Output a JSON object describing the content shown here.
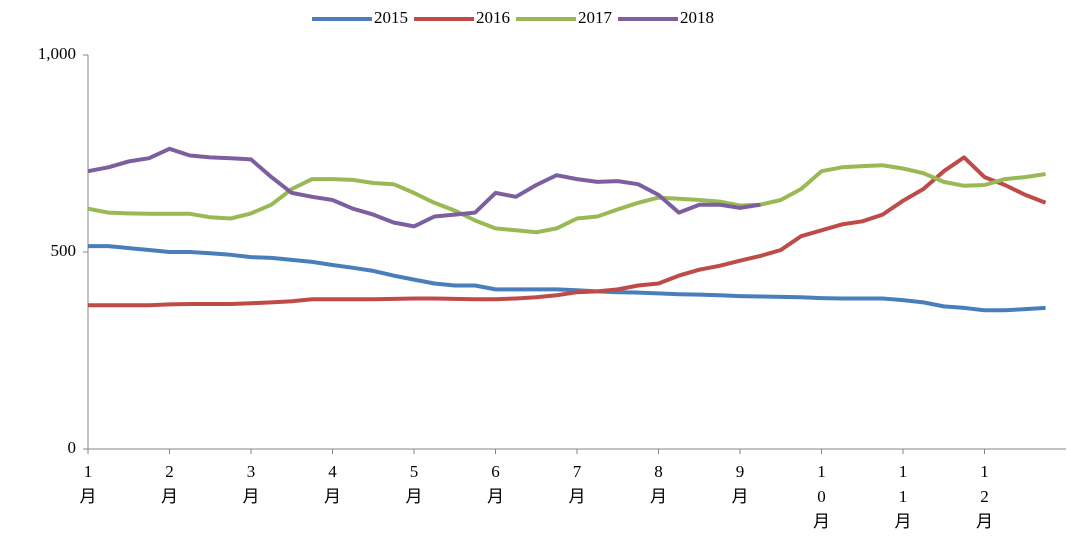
{
  "chart_data": {
    "type": "line",
    "categories": [
      "1月",
      null,
      null,
      null,
      "2月",
      null,
      null,
      null,
      "3月",
      null,
      null,
      null,
      "4月",
      null,
      null,
      null,
      "5月",
      null,
      null,
      null,
      "6月",
      null,
      null,
      null,
      "7月",
      null,
      null,
      null,
      "8月",
      null,
      null,
      null,
      "9月",
      null,
      null,
      null,
      "10月",
      null,
      null,
      null,
      "11月",
      null,
      null,
      null,
      "12月",
      null,
      null,
      null
    ],
    "series": [
      {
        "name": "2015",
        "color": "#4a7ebb",
        "values": [
          515,
          515,
          510,
          505,
          500,
          500,
          497,
          493,
          487,
          485,
          480,
          475,
          467,
          460,
          452,
          440,
          430,
          420,
          415,
          415,
          405,
          405,
          405,
          405,
          403,
          400,
          398,
          397,
          395,
          393,
          392,
          390,
          388,
          387,
          386,
          385,
          383,
          382,
          382,
          382,
          378,
          372,
          362,
          358,
          352,
          352,
          355,
          358
        ]
      },
      {
        "name": "2016",
        "color": "#be4b48",
        "values": [
          365,
          365,
          365,
          365,
          367,
          368,
          368,
          368,
          370,
          372,
          375,
          380,
          380,
          380,
          380,
          381,
          382,
          382,
          381,
          380,
          380,
          382,
          385,
          390,
          398,
          400,
          405,
          415,
          420,
          440,
          455,
          465,
          478,
          490,
          505,
          540,
          555,
          570,
          578,
          595,
          630,
          660,
          705,
          740,
          690,
          670,
          645,
          625
        ]
      },
      {
        "name": "2017",
        "color": "#98b954",
        "values": [
          610,
          600,
          598,
          597,
          597,
          597,
          588,
          585,
          598,
          620,
          660,
          685,
          685,
          683,
          675,
          672,
          650,
          625,
          605,
          580,
          560,
          555,
          550,
          560,
          585,
          590,
          608,
          625,
          638,
          635,
          632,
          628,
          618,
          620,
          632,
          660,
          705,
          715,
          718,
          720,
          712,
          700,
          678,
          668,
          670,
          685,
          690,
          698
        ]
      },
      {
        "name": "2018",
        "color": "#7d5fa0",
        "values": [
          705,
          715,
          730,
          738,
          762,
          745,
          740,
          738,
          735,
          690,
          650,
          640,
          632,
          610,
          595,
          575,
          565,
          590,
          595,
          600,
          650,
          640,
          670,
          695,
          685,
          678,
          680,
          672,
          645,
          600,
          620,
          620,
          612,
          620,
          null,
          null,
          null,
          null,
          null,
          null,
          null,
          null,
          null,
          null,
          null,
          null,
          null,
          null
        ]
      }
    ],
    "ylim": [
      0,
      1000
    ],
    "yticks": [
      0,
      500,
      {
        "value": 1000,
        "label": "1,000"
      }
    ],
    "grid": false,
    "legend": "top"
  }
}
